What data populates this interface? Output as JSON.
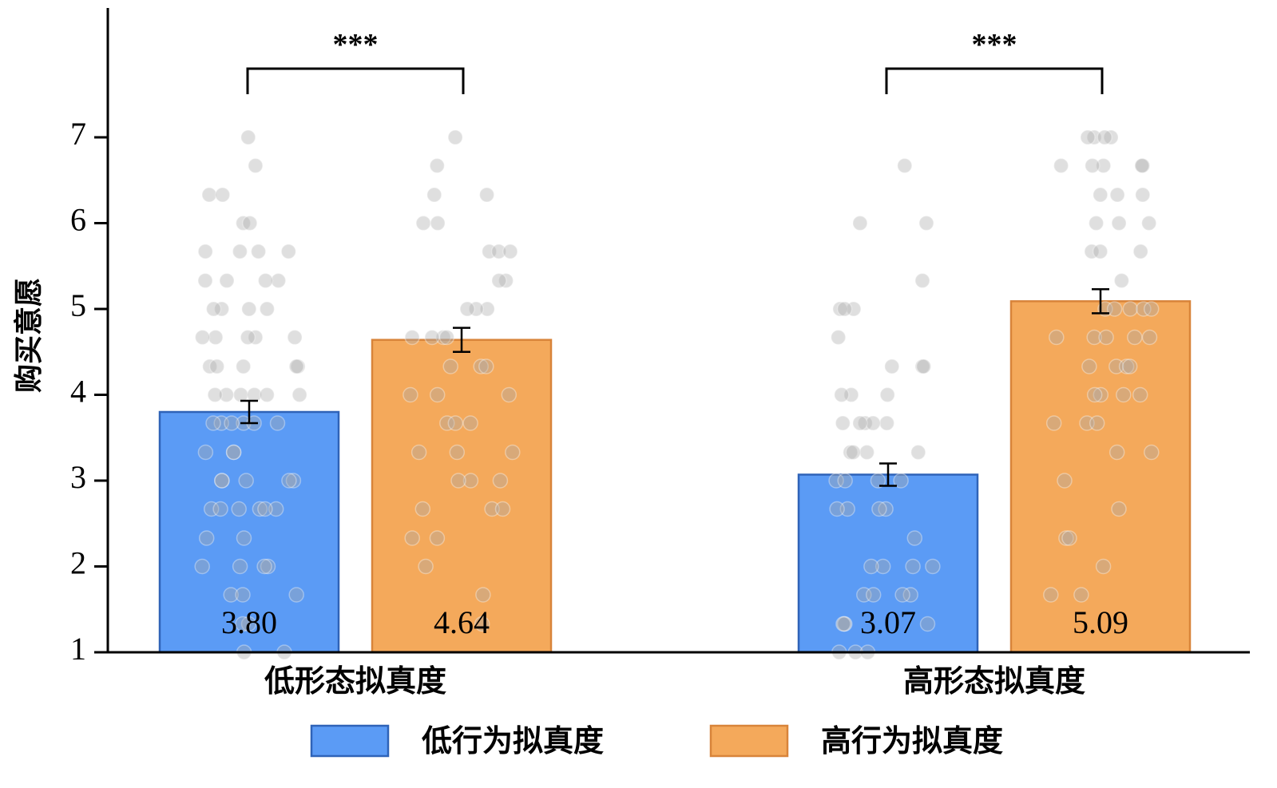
{
  "chart_data": {
    "type": "bar",
    "categories": [
      "低形态拟真度",
      "高形态拟真度"
    ],
    "series": [
      {
        "name": "低行为拟真度",
        "values": [
          3.8,
          3.07
        ],
        "errors": [
          0.13,
          0.13
        ],
        "color": "#5b9bf5",
        "edge": "#2f63b8"
      },
      {
        "name": "高行为拟真度",
        "values": [
          4.64,
          5.09
        ],
        "errors": [
          0.14,
          0.14
        ],
        "color": "#f4a95b",
        "edge": "#d8843a"
      }
    ],
    "value_labels": [
      "3.80",
      "4.64",
      "3.07",
      "5.09"
    ],
    "ylabel": "购买意愿",
    "ylim": [
      1,
      8
    ],
    "yticks": [
      1,
      2,
      3,
      4,
      5,
      6,
      7
    ],
    "significance": [
      {
        "category": "低形态拟真度",
        "label": "***"
      },
      {
        "category": "高形态拟真度",
        "label": "***"
      }
    ],
    "legend": {
      "position": "bottom"
    },
    "grid": false,
    "points": [
      [
        [
          7.0,
          6.67,
          6.33,
          6.33,
          6.0,
          6.0,
          5.67,
          5.67,
          5.67,
          5.67,
          5.33,
          5.33,
          5.33,
          5.33,
          5.0,
          5.0,
          5.0,
          5.0,
          4.67,
          4.67,
          4.67,
          4.67,
          4.67,
          4.33,
          4.33,
          4.33,
          4.33,
          4.33,
          4.0,
          4.0,
          4.0,
          4.0,
          4.0,
          4.0,
          3.67,
          3.67,
          3.67,
          3.67,
          3.67,
          3.67,
          3.33,
          3.33,
          3.33,
          3.0,
          3.0,
          3.0,
          3.0,
          3.0,
          2.67,
          2.67,
          2.67,
          2.67,
          2.67,
          2.67,
          2.33,
          2.33,
          2.0,
          2.0,
          2.0,
          2.0,
          1.67,
          1.67,
          1.67,
          1.33,
          1.33,
          1.0,
          1.0
        ],
        [
          7.0,
          6.67,
          6.33,
          6.33,
          6.0,
          6.0,
          5.67,
          5.67,
          5.67,
          5.33,
          5.33,
          5.0,
          5.0,
          5.0,
          4.67,
          4.67,
          4.67,
          4.67,
          4.33,
          4.33,
          4.33,
          4.0,
          4.0,
          4.0,
          3.67,
          3.67,
          3.67,
          3.33,
          3.33,
          3.33,
          3.0,
          3.0,
          3.0,
          2.67,
          2.67,
          2.67,
          2.33,
          2.33,
          2.0,
          1.67,
          1.33
        ]
      ],
      [
        [
          6.67,
          6.0,
          6.0,
          5.33,
          5.0,
          5.0,
          5.0,
          4.67,
          4.33,
          4.33,
          4.33,
          4.0,
          4.0,
          4.0,
          3.67,
          3.67,
          3.67,
          3.67,
          3.67,
          3.33,
          3.33,
          3.33,
          3.33,
          3.0,
          3.0,
          3.0,
          3.0,
          2.67,
          2.67,
          2.67,
          2.67,
          2.33,
          2.0,
          2.0,
          2.0,
          2.0,
          1.67,
          1.67,
          1.67,
          1.67,
          1.33,
          1.33,
          1.33,
          1.33,
          1.0,
          1.0,
          1.0
        ],
        [
          7.0,
          7.0,
          7.0,
          7.0,
          6.67,
          6.67,
          6.67,
          6.67,
          6.67,
          6.33,
          6.33,
          6.33,
          6.0,
          6.0,
          6.0,
          5.67,
          5.67,
          5.67,
          5.33,
          5.0,
          5.0,
          5.0,
          5.0,
          5.0,
          4.67,
          4.67,
          4.67,
          4.67,
          4.67,
          4.33,
          4.33,
          4.33,
          4.33,
          4.0,
          4.0,
          4.0,
          4.0,
          3.67,
          3.67,
          3.67,
          3.33,
          3.33,
          3.0,
          2.67,
          2.33,
          2.33,
          2.0,
          1.67,
          1.67
        ]
      ]
    ]
  }
}
